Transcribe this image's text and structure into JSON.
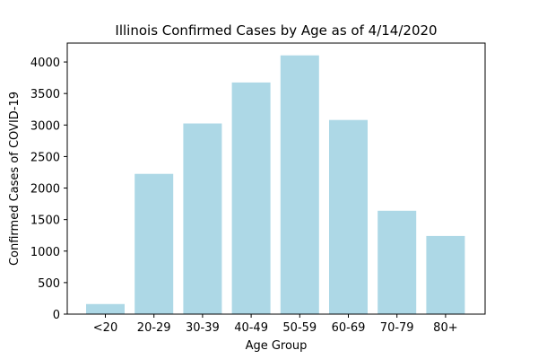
{
  "chart_data": {
    "type": "bar",
    "title": "Illinois Confirmed Cases by Age as of 4/14/2020",
    "xlabel": "Age Group",
    "ylabel": "Confirmed Cases of COVID-19",
    "categories": [
      "<20",
      "20-29",
      "30-39",
      "40-49",
      "50-59",
      "60-69",
      "70-79",
      "80+"
    ],
    "values": [
      160,
      2225,
      3025,
      3675,
      4105,
      3080,
      1640,
      1240
    ],
    "ylim": [
      0,
      4300
    ],
    "yticks": [
      0,
      500,
      1000,
      1500,
      2000,
      2500,
      3000,
      3500,
      4000
    ],
    "bar_color": "#add8e6",
    "grid": false,
    "legend": "none"
  }
}
